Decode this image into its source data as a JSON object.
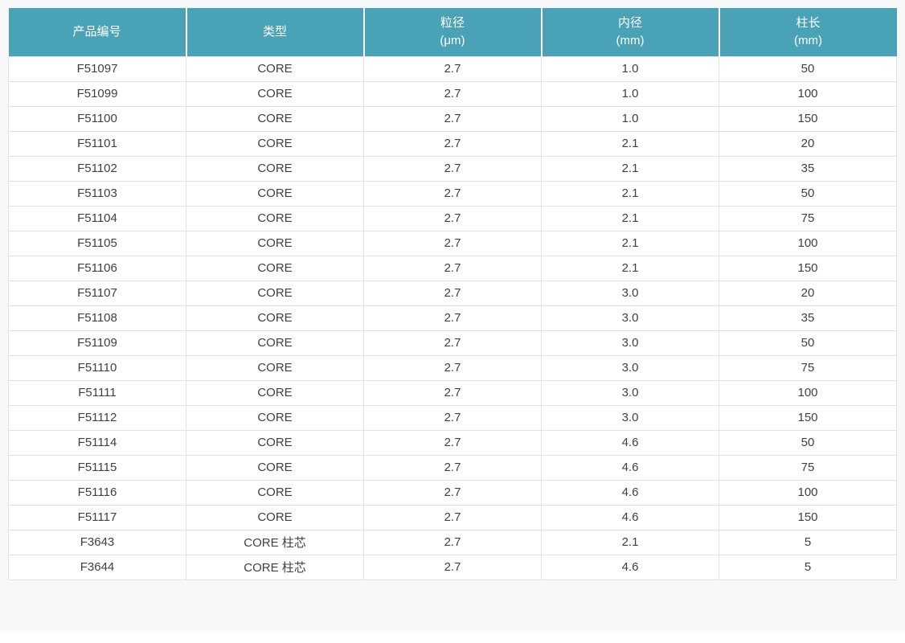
{
  "table": {
    "columns": [
      {
        "label": "产品编号",
        "unit": ""
      },
      {
        "label": "类型",
        "unit": ""
      },
      {
        "label": "粒径",
        "unit": "(μm)"
      },
      {
        "label": "内径",
        "unit": "(mm)"
      },
      {
        "label": "柱长",
        "unit": "(mm)"
      }
    ],
    "rows": [
      [
        "F51097",
        "CORE",
        "2.7",
        "1.0",
        "50"
      ],
      [
        "F51099",
        "CORE",
        "2.7",
        "1.0",
        "100"
      ],
      [
        "F51100",
        "CORE",
        "2.7",
        "1.0",
        "150"
      ],
      [
        "F51101",
        "CORE",
        "2.7",
        "2.1",
        "20"
      ],
      [
        "F51102",
        "CORE",
        "2.7",
        "2.1",
        "35"
      ],
      [
        "F51103",
        "CORE",
        "2.7",
        "2.1",
        "50"
      ],
      [
        "F51104",
        "CORE",
        "2.7",
        "2.1",
        "75"
      ],
      [
        "F51105",
        "CORE",
        "2.7",
        "2.1",
        "100"
      ],
      [
        "F51106",
        "CORE",
        "2.7",
        "2.1",
        "150"
      ],
      [
        "F51107",
        "CORE",
        "2.7",
        "3.0",
        "20"
      ],
      [
        "F51108",
        "CORE",
        "2.7",
        "3.0",
        "35"
      ],
      [
        "F51109",
        "CORE",
        "2.7",
        "3.0",
        "50"
      ],
      [
        "F51110",
        "CORE",
        "2.7",
        "3.0",
        "75"
      ],
      [
        "F51111",
        "CORE",
        "2.7",
        "3.0",
        "100"
      ],
      [
        "F51112",
        "CORE",
        "2.7",
        "3.0",
        "150"
      ],
      [
        "F51114",
        "CORE",
        "2.7",
        "4.6",
        "50"
      ],
      [
        "F51115",
        "CORE",
        "2.7",
        "4.6",
        "75"
      ],
      [
        "F51116",
        "CORE",
        "2.7",
        "4.6",
        "100"
      ],
      [
        "F51117",
        "CORE",
        "2.7",
        "4.6",
        "150"
      ],
      [
        "F3643",
        "CORE 柱芯",
        "2.7",
        "2.1",
        "5"
      ],
      [
        "F3644",
        "CORE 柱芯",
        "2.7",
        "4.6",
        "5"
      ]
    ]
  },
  "colors": {
    "header_bg": "#4aa2b6",
    "header_text": "#ffffff",
    "cell_text": "#3f3f3f",
    "row_border": "#e3e3e3",
    "page_bg": "#f7f8fa"
  }
}
